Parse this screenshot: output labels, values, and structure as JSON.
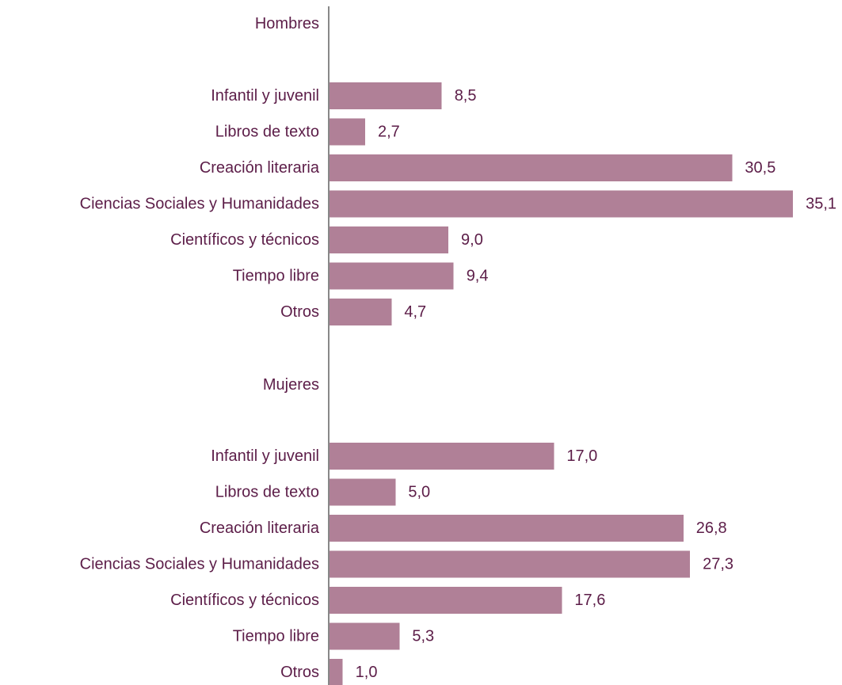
{
  "chart_data": {
    "type": "bar",
    "orientation": "horizontal",
    "bar_color": "#b08097",
    "text_color": "#5c1d48",
    "axis_color": "#888888",
    "categories": [
      "Infantil y juvenil",
      "Libros de texto",
      "Creación literaria",
      "Ciencias Sociales y Humanidades",
      "Científicos y técnicos",
      "Tiempo libre",
      "Otros"
    ],
    "groups": [
      {
        "name": "Hombres",
        "values": [
          8.5,
          2.7,
          30.5,
          35.1,
          9.0,
          9.4,
          4.7
        ],
        "value_labels": [
          "8,5",
          "2,7",
          "30,5",
          "35,1",
          "9,0",
          "9,4",
          "4,7"
        ]
      },
      {
        "name": "Mujeres",
        "values": [
          17.0,
          5.0,
          26.8,
          27.3,
          17.6,
          5.3,
          1.0
        ],
        "value_labels": [
          "17,0",
          "5,0",
          "26,8",
          "27,3",
          "17,6",
          "5,3",
          "1,0"
        ]
      }
    ],
    "xlim": [
      0,
      35.1
    ],
    "grid": false,
    "legend": "none"
  }
}
